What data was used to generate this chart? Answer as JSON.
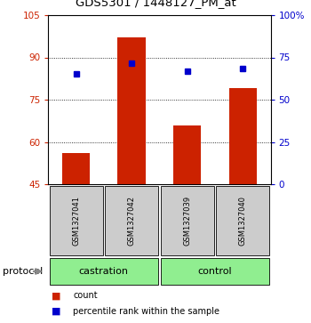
{
  "title": "GDS5301 / 1448127_PM_at",
  "samples": [
    "GSM1327041",
    "GSM1327042",
    "GSM1327039",
    "GSM1327040"
  ],
  "groups": [
    "castration",
    "castration",
    "control",
    "control"
  ],
  "bar_values": [
    56,
    97,
    66,
    79
  ],
  "dot_values": [
    84,
    88,
    85,
    86
  ],
  "bar_color": "#cc2200",
  "dot_color": "#0000cc",
  "ylim_left": [
    45,
    105
  ],
  "ylim_right": [
    0,
    100
  ],
  "yticks_left": [
    45,
    60,
    75,
    90,
    105
  ],
  "yticks_right": [
    0,
    25,
    50,
    75,
    100
  ],
  "ytick_labels_left": [
    "45",
    "60",
    "75",
    "90",
    "105"
  ],
  "ytick_labels_right": [
    "0",
    "25",
    "50",
    "75",
    "100%"
  ],
  "left_tick_color": "#cc2200",
  "right_tick_color": "#0000cc",
  "legend_count_label": "count",
  "legend_pct_label": "percentile rank within the sample",
  "protocol_label": "protocol",
  "sample_box_color": "#cccccc",
  "group_box_color": "#90EE90",
  "bar_width": 0.5,
  "grid_lines": [
    60,
    75,
    90
  ],
  "group_defs": [
    {
      "label": "castration",
      "start": 1,
      "end": 2
    },
    {
      "label": "control",
      "start": 3,
      "end": 4
    }
  ]
}
